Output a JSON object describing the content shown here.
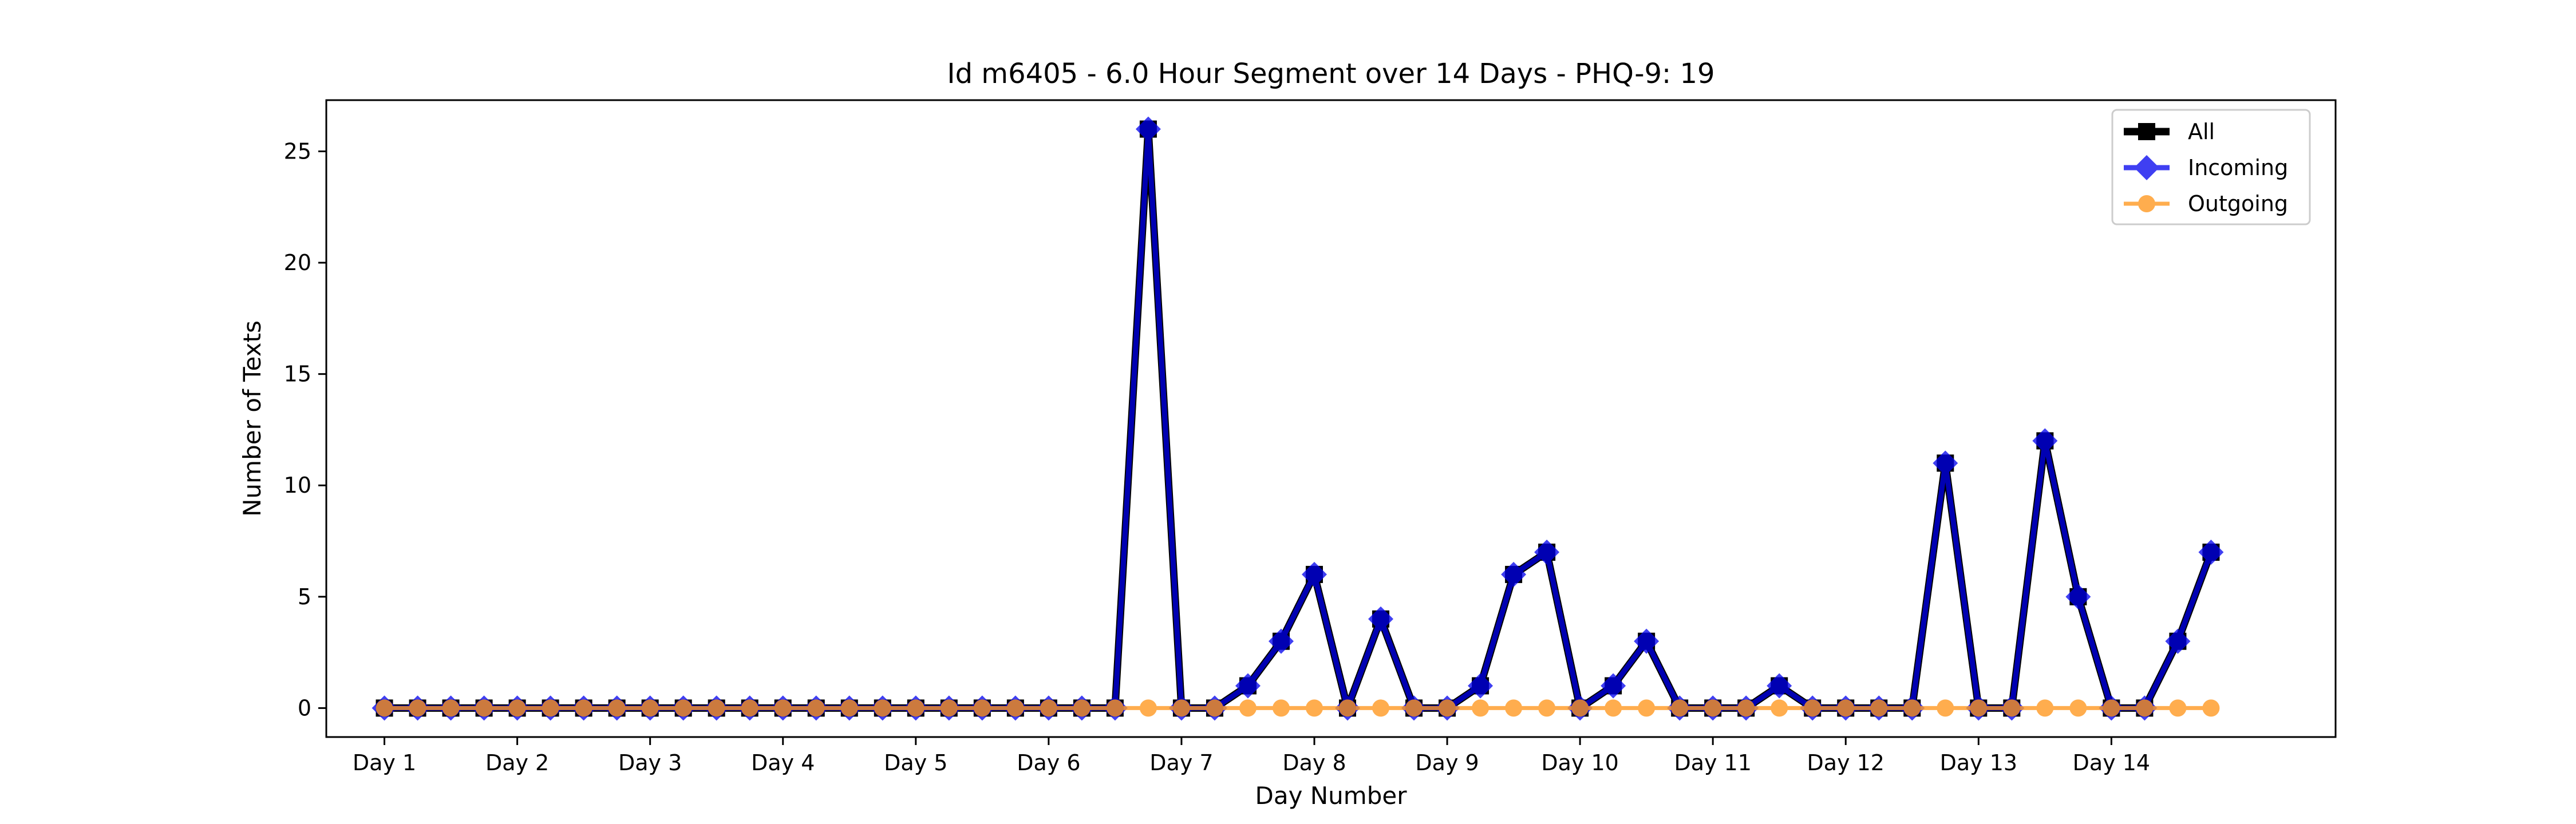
{
  "chart_data": {
    "type": "line",
    "title": "Id m6405 - 6.0 Hour Segment over 14 Days - PHQ-9: 19",
    "xlabel": "Day Number",
    "ylabel": "Number of Texts",
    "xlim": [
      -1.75,
      58.75
    ],
    "ylim": [
      -1.3,
      27.3
    ],
    "yticks": [
      0,
      5,
      10,
      15,
      20,
      25
    ],
    "xtick_positions": [
      0,
      4,
      8,
      12,
      16,
      20,
      24,
      28,
      32,
      36,
      40,
      44,
      48,
      52
    ],
    "xtick_labels": [
      "Day 1",
      "Day 2",
      "Day 3",
      "Day 4",
      "Day 5",
      "Day 6",
      "Day 7",
      "Day 8",
      "Day 9",
      "Day 10",
      "Day 11",
      "Day 12",
      "Day 13",
      "Day 14"
    ],
    "grid": false,
    "legend_position": "top-right",
    "x": [
      0,
      1,
      2,
      3,
      4,
      5,
      6,
      7,
      8,
      9,
      10,
      11,
      12,
      13,
      14,
      15,
      16,
      17,
      18,
      19,
      20,
      21,
      22,
      23,
      24,
      25,
      26,
      27,
      28,
      29,
      30,
      31,
      32,
      33,
      34,
      35,
      36,
      37,
      38,
      39,
      40,
      41,
      42,
      43,
      44,
      45,
      46,
      47,
      48,
      49,
      50,
      51,
      52,
      53,
      54,
      55
    ],
    "series": [
      {
        "name": "All",
        "color": "#000000",
        "marker": "square",
        "values": [
          0,
          0,
          0,
          0,
          0,
          0,
          0,
          0,
          0,
          0,
          0,
          0,
          0,
          0,
          0,
          0,
          0,
          0,
          0,
          0,
          0,
          0,
          0,
          26,
          0,
          0,
          1,
          3,
          6,
          0,
          4,
          0,
          0,
          1,
          6,
          7,
          0,
          1,
          3,
          0,
          0,
          0,
          1,
          0,
          0,
          0,
          0,
          11,
          0,
          0,
          12,
          5,
          0,
          0,
          3,
          7
        ]
      },
      {
        "name": "Incoming",
        "color": "#0000ee",
        "marker": "diamond",
        "values": [
          0,
          0,
          0,
          0,
          0,
          0,
          0,
          0,
          0,
          0,
          0,
          0,
          0,
          0,
          0,
          0,
          0,
          0,
          0,
          0,
          0,
          0,
          0,
          26,
          0,
          0,
          1,
          3,
          6,
          0,
          4,
          0,
          0,
          1,
          6,
          7,
          0,
          1,
          3,
          0,
          0,
          0,
          1,
          0,
          0,
          0,
          0,
          11,
          0,
          0,
          12,
          5,
          0,
          0,
          3,
          7
        ]
      },
      {
        "name": "Outgoing",
        "color": "#ff9922",
        "marker": "circle",
        "values": [
          0,
          0,
          0,
          0,
          0,
          0,
          0,
          0,
          0,
          0,
          0,
          0,
          0,
          0,
          0,
          0,
          0,
          0,
          0,
          0,
          0,
          0,
          0,
          0,
          0,
          0,
          0,
          0,
          0,
          0,
          0,
          0,
          0,
          0,
          0,
          0,
          0,
          0,
          0,
          0,
          0,
          0,
          0,
          0,
          0,
          0,
          0,
          0,
          0,
          0,
          0,
          0,
          0,
          0,
          0,
          0
        ]
      }
    ]
  }
}
